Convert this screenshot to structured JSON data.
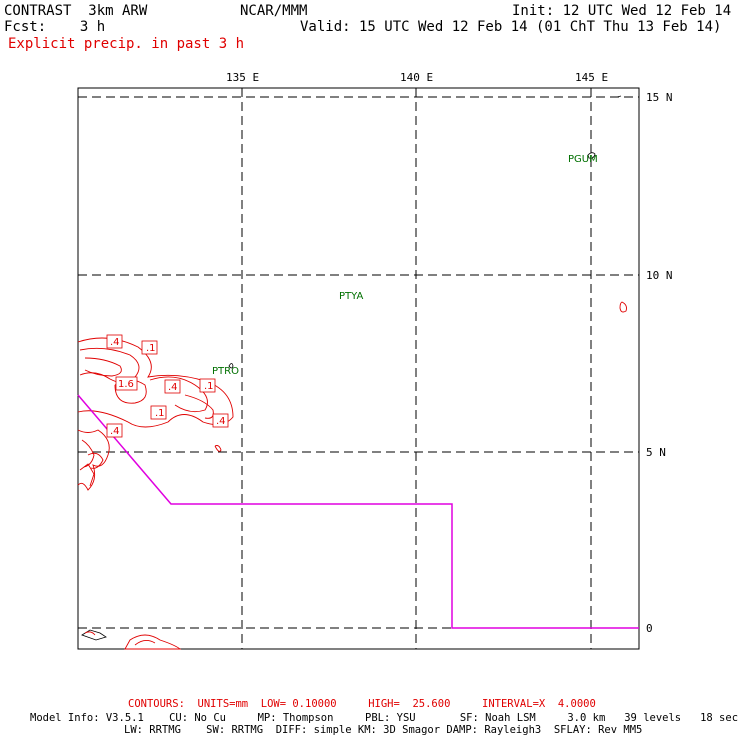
{
  "header": {
    "model": "CONTRAST  3km ARW",
    "org": "NCAR/MMM",
    "init": "Init: 12 UTC Wed 12 Feb 14",
    "fcst": "Fcst:    3 h",
    "valid": "Valid: 15 UTC Wed 12 Feb 14 (01 ChT Thu 13 Feb 14)",
    "field": "Explicit precip. in past 3 h"
  },
  "map": {
    "lon_labels": [
      "135 E",
      "140 E",
      "145 E"
    ],
    "lat_labels": [
      "15 N",
      "10 N",
      "5 N",
      "0"
    ],
    "stations": [
      "PGUM",
      "PTYA",
      "PTRO"
    ],
    "contour_labels": [
      ".4",
      ".1",
      "1.6",
      ".4",
      ".1",
      ".1",
      ".4",
      ".4"
    ],
    "colors": {
      "contour": "#e00000",
      "boundary": "#e000e0",
      "station": "#007000",
      "grid": "#000000"
    }
  },
  "footer": {
    "contours": "CONTOURS:  UNITS=mm  LOW= 0.10000     HIGH=  25.600     INTERVAL=X  4.0000",
    "model_info": "Model Info: V3.5.1    CU: No Cu     MP: Thompson     PBL: YSU       SF: Noah LSM     3.0 km   39 levels   18 sec",
    "model_info2": "LW: RRTMG    SW: RRTMG  DIFF: simple KM: 3D Smagor DAMP: Rayleigh3  SFLAY: Rev MM5"
  }
}
